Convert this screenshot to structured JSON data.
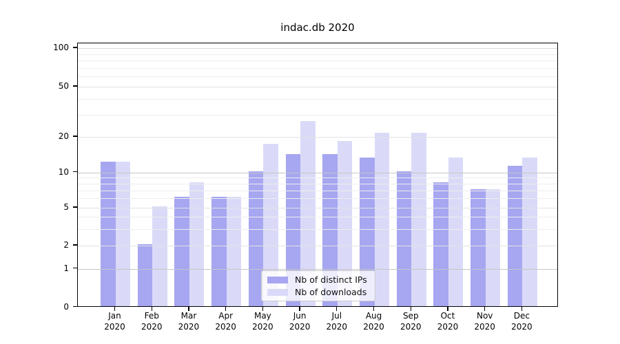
{
  "chart_data": {
    "type": "bar",
    "title": "indac.db 2020",
    "categories": [
      "Jan",
      "Feb",
      "Mar",
      "Apr",
      "May",
      "Jun",
      "Jul",
      "Aug",
      "Sep",
      "Oct",
      "Nov",
      "Dec"
    ],
    "year": "2020",
    "series": [
      {
        "name": "Nb of distinct IPs",
        "color": "#a6a6f1",
        "values": [
          12,
          2,
          6,
          6,
          10,
          14,
          14,
          13,
          10,
          8,
          7,
          11
        ]
      },
      {
        "name": "Nb of downloads",
        "color": "#dadaf8",
        "values": [
          12,
          5,
          8,
          6,
          17,
          26,
          18,
          21,
          21,
          13,
          7,
          13
        ]
      }
    ],
    "yscale": "symlog",
    "ylim": [
      0,
      110
    ],
    "y_ticks": [
      100,
      50,
      20,
      10,
      5,
      2,
      1,
      0
    ],
    "y_tick_labels": [
      "100",
      "50",
      "20",
      "10",
      "5",
      "2",
      "1",
      "0"
    ],
    "grid": true,
    "legend_position": "lower center"
  },
  "colors": {
    "background": "#ffffff",
    "axis": "#000000",
    "grid_major": "#c6c6c6",
    "grid_mid": "#e3e3e3",
    "grid_minor": "#ededed",
    "grid_top": "#d9d9d9",
    "legend_border": "#cccccc"
  }
}
